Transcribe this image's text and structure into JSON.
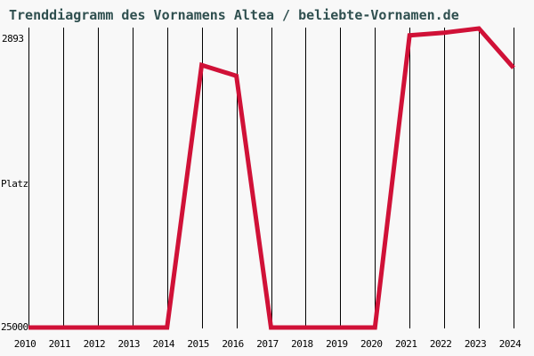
{
  "title": "Trenddiagramm des Vornamens Altea / beliebte-Vornamen.de",
  "colors": {
    "title": "#2f4f4f",
    "line": "#d01137",
    "grid": "#000000",
    "background": "#f8f8f8",
    "tick_text": "#000000"
  },
  "chart_data": {
    "type": "line",
    "x": [
      2010,
      2011,
      2012,
      2013,
      2014,
      2015,
      2016,
      2017,
      2018,
      2019,
      2020,
      2021,
      2022,
      2023,
      2024
    ],
    "x_tick_labels": [
      "2010",
      "2011",
      "2012",
      "2013",
      "2014",
      "2015",
      "2016",
      "2017",
      "2018",
      "2019",
      "2020",
      "2021",
      "2022",
      "2023",
      "2024"
    ],
    "series": [
      {
        "name": "Altea",
        "values": [
          25000,
          25000,
          25000,
          25000,
          25000,
          5600,
          6400,
          25000,
          25000,
          25000,
          25000,
          3400,
          3200,
          2893,
          5800
        ]
      }
    ],
    "title": "Trenddiagramm des Vornamens Altea / beliebte-Vornamen.de",
    "xlabel": "",
    "ylabel": "Platz",
    "yticks": [
      {
        "label": "2893",
        "value": 2893
      },
      {
        "label": "25000",
        "value": 25000
      }
    ],
    "ylim": [
      2893,
      25000
    ],
    "y_axis_inverted": true,
    "grid": "vertical-only",
    "legend": "none"
  }
}
